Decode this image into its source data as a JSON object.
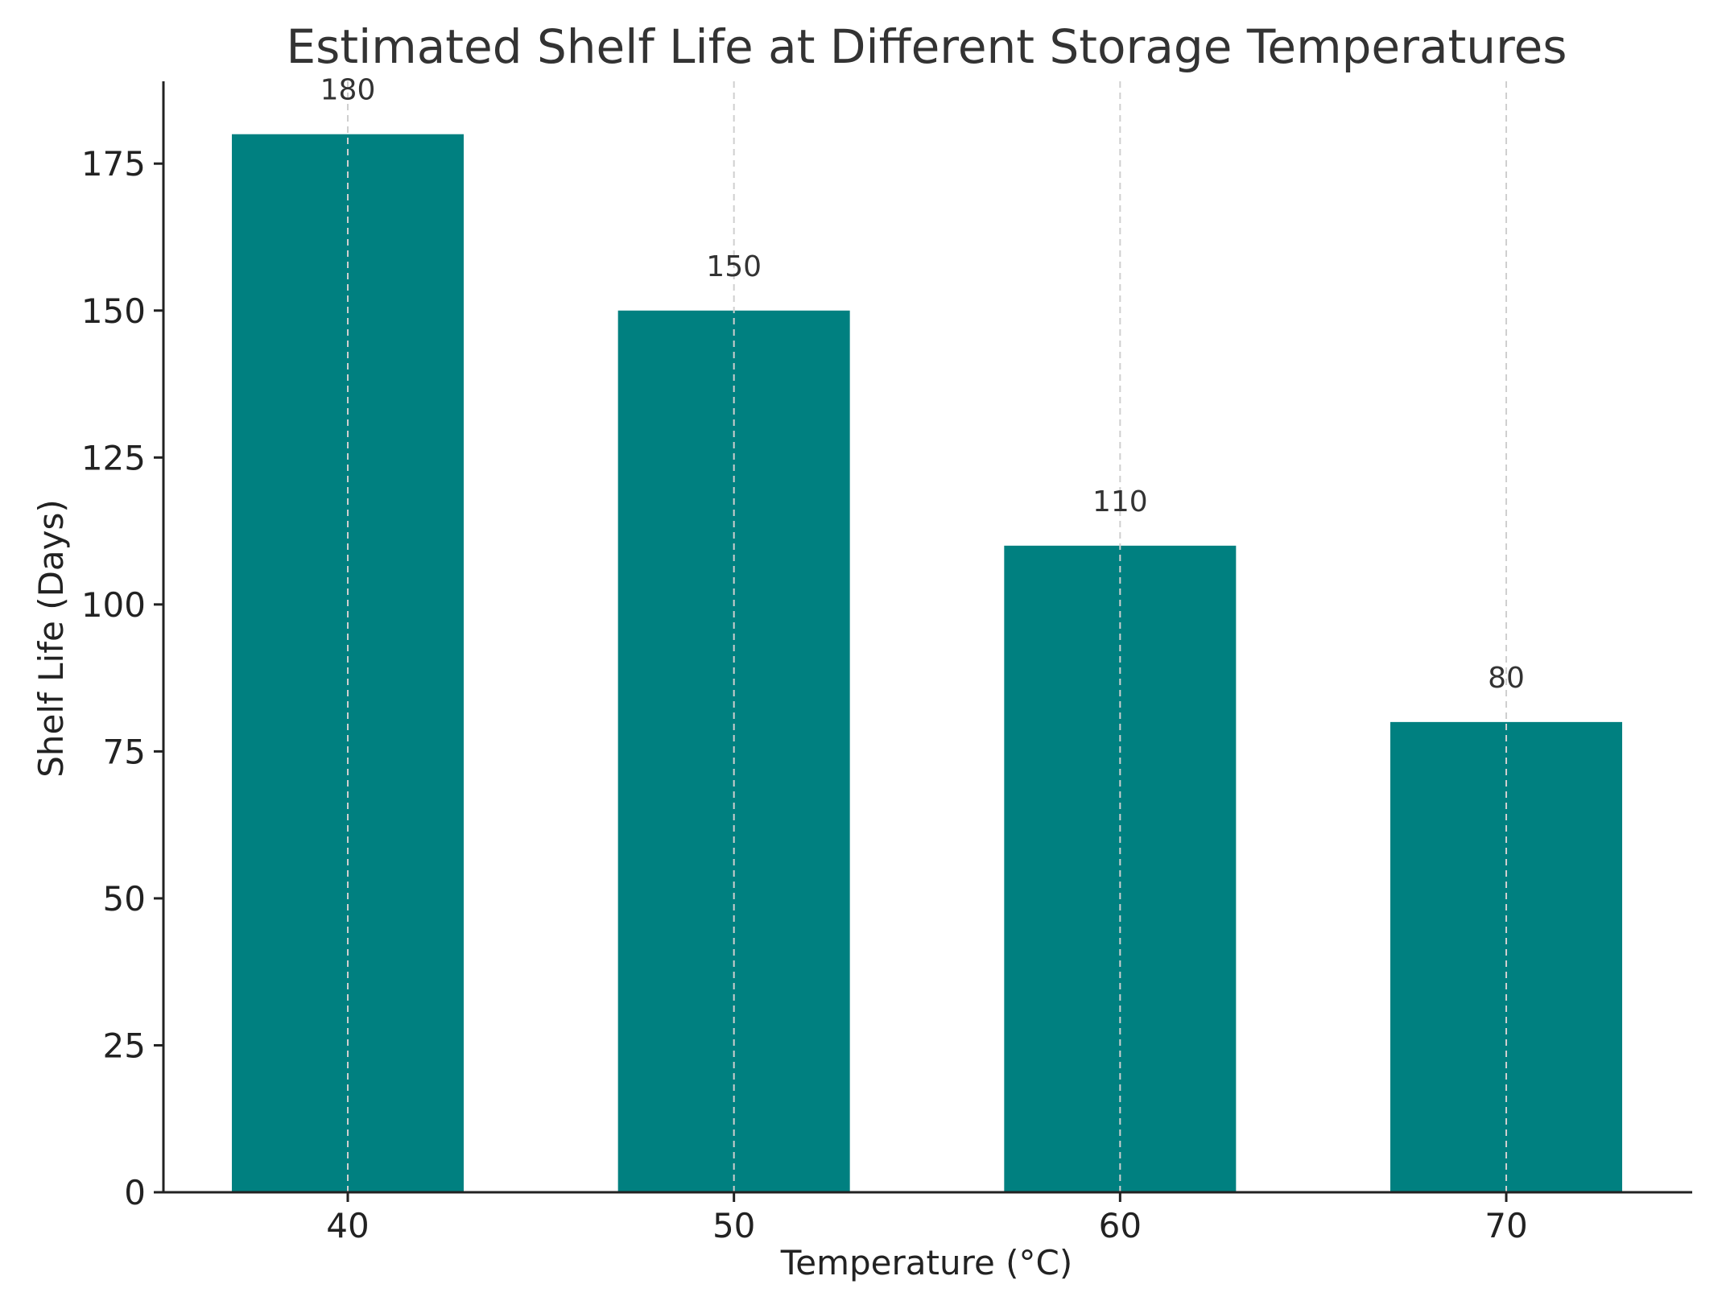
{
  "chart_data": {
    "type": "bar",
    "title": "Estimated Shelf Life at Different Storage Temperatures",
    "xlabel": "Temperature (°C)",
    "ylabel": "Shelf Life (Days)",
    "categories": [
      "40",
      "50",
      "60",
      "70"
    ],
    "values": [
      180,
      150,
      110,
      80
    ],
    "data_labels": [
      "180",
      "150",
      "110",
      "80"
    ],
    "ylim": [
      0,
      189
    ],
    "yticks": [
      0,
      25,
      50,
      75,
      100,
      125,
      150,
      175
    ],
    "ytick_labels": [
      "0",
      "25",
      "50",
      "75",
      "100",
      "125",
      "150",
      "175"
    ],
    "grid": "x-dashed",
    "legend": "none",
    "bar_color": "#008080"
  }
}
